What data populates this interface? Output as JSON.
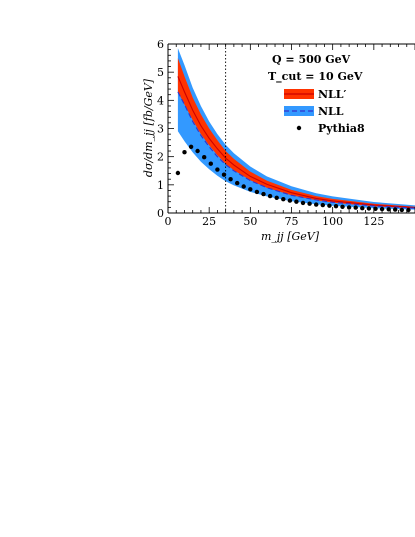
{
  "chart_data": {
    "type": "line",
    "xlabel": "m_jj [GeV]",
    "ylabel": "dσ/dm_jj [fb/GeV]",
    "xlim": [
      0,
      150
    ],
    "ylim": [
      0,
      6
    ],
    "x_ticks": [
      "0",
      "25",
      "50",
      "75",
      "100",
      "125"
    ],
    "y_ticks": [
      "0",
      "1",
      "2",
      "3",
      "4",
      "5",
      "6"
    ],
    "vertical_line": {
      "x": 35,
      "style": "dotted"
    },
    "annotations": [
      "Q = 500 GeV",
      "T_cut = 10 GeV"
    ],
    "legend": {
      "placement": "top-right",
      "entries": [
        "NLL′",
        "NLL",
        "Pythia8"
      ]
    },
    "series": [
      {
        "name": "NLL′",
        "kind": "band-with-central-line",
        "color_fill": "#ff3300",
        "color_line": "#cc0000",
        "x": [
          6,
          10,
          15,
          20,
          25,
          30,
          35,
          40,
          50,
          60,
          75,
          90,
          100,
          125,
          150
        ],
        "central": [
          4.85,
          4.3,
          3.65,
          3.1,
          2.65,
          2.28,
          1.95,
          1.7,
          1.3,
          1.02,
          0.72,
          0.52,
          0.43,
          0.28,
          0.19
        ],
        "lower": [
          4.3,
          3.85,
          3.3,
          2.8,
          2.4,
          2.05,
          1.75,
          1.52,
          1.16,
          0.9,
          0.63,
          0.45,
          0.37,
          0.24,
          0.16
        ],
        "upper": [
          5.5,
          4.85,
          4.1,
          3.5,
          3.0,
          2.58,
          2.2,
          1.92,
          1.47,
          1.15,
          0.82,
          0.6,
          0.5,
          0.33,
          0.22
        ]
      },
      {
        "name": "NLL",
        "kind": "band-with-central-line",
        "color_fill": "#3399ff",
        "color_line": "#3333cc",
        "x": [
          6,
          10,
          15,
          20,
          25,
          30,
          35,
          40,
          50,
          60,
          75,
          90,
          100,
          125,
          150
        ],
        "central": [
          4.3,
          3.85,
          3.25,
          2.75,
          2.35,
          2.0,
          1.72,
          1.5,
          1.15,
          0.9,
          0.63,
          0.46,
          0.38,
          0.25,
          0.17
        ],
        "lower": [
          2.9,
          2.55,
          2.15,
          1.82,
          1.55,
          1.32,
          1.13,
          0.98,
          0.75,
          0.59,
          0.42,
          0.31,
          0.26,
          0.17,
          0.12
        ],
        "upper": [
          5.85,
          5.25,
          4.45,
          3.8,
          3.25,
          2.8,
          2.42,
          2.12,
          1.65,
          1.3,
          0.95,
          0.7,
          0.59,
          0.39,
          0.27
        ]
      },
      {
        "name": "Pythia8",
        "kind": "points",
        "color": "#000000",
        "x": [
          6,
          10,
          14,
          18,
          22,
          26,
          30,
          34,
          38,
          42,
          46,
          50,
          54,
          58,
          62,
          66,
          70,
          74,
          78,
          82,
          86,
          90,
          94,
          98,
          102,
          106,
          110,
          114,
          118,
          122,
          126,
          130,
          134,
          138,
          142,
          146
        ],
        "y": [
          1.42,
          2.16,
          2.35,
          2.2,
          1.98,
          1.75,
          1.54,
          1.36,
          1.2,
          1.06,
          0.94,
          0.84,
          0.75,
          0.67,
          0.6,
          0.54,
          0.49,
          0.44,
          0.4,
          0.36,
          0.33,
          0.3,
          0.28,
          0.26,
          0.24,
          0.22,
          0.2,
          0.19,
          0.17,
          0.16,
          0.15,
          0.14,
          0.13,
          0.12,
          0.11,
          0.105
        ]
      }
    ]
  }
}
